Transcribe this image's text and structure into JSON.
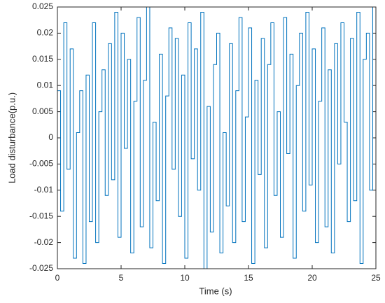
{
  "chart_data": {
    "type": "stairs",
    "xlabel": "Time (s)",
    "ylabel": "Load disturbance(p.u.)",
    "xlim": [
      0,
      25
    ],
    "ylim": [
      -0.025,
      0.025
    ],
    "xticks": [
      0,
      5,
      10,
      15,
      20,
      25
    ],
    "yticks": [
      -0.025,
      -0.02,
      -0.015,
      -0.01,
      -0.005,
      0,
      0.005,
      0.01,
      0.015,
      0.02,
      0.025
    ],
    "grid": false,
    "series": [
      {
        "color": "#0072bd",
        "x": [
          0,
          0.25,
          0.5,
          0.75,
          1,
          1.25,
          1.5,
          1.75,
          2,
          2.25,
          2.5,
          2.75,
          3,
          3.25,
          3.5,
          3.75,
          4,
          4.25,
          4.5,
          4.75,
          5,
          5.25,
          5.5,
          5.75,
          6,
          6.25,
          6.5,
          6.75,
          7,
          7.25,
          7.5,
          7.75,
          8,
          8.25,
          8.5,
          8.75,
          9,
          9.25,
          9.5,
          9.75,
          10,
          10.25,
          10.5,
          10.75,
          11,
          11.25,
          11.5,
          11.75,
          12,
          12.25,
          12.5,
          12.75,
          13,
          13.25,
          13.5,
          13.75,
          14,
          14.25,
          14.5,
          14.75,
          15,
          15.25,
          15.5,
          15.75,
          16,
          16.25,
          16.5,
          16.75,
          17,
          17.25,
          17.5,
          17.75,
          18,
          18.25,
          18.5,
          18.75,
          19,
          19.25,
          19.5,
          19.75,
          20,
          20.25,
          20.5,
          20.75,
          21,
          21.25,
          21.5,
          21.75,
          22,
          22.25,
          22.5,
          22.75,
          23,
          23.25,
          23.5,
          23.75,
          24,
          24.25,
          24.5,
          24.75,
          25
        ],
        "values": [
          0.009,
          -0.014,
          0.022,
          -0.006,
          0.017,
          -0.023,
          0.001,
          0.009,
          -0.024,
          0.012,
          -0.016,
          0.022,
          -0.02,
          0.005,
          0.013,
          -0.011,
          0.018,
          -0.008,
          0.024,
          -0.019,
          0.02,
          -0.002,
          0.015,
          -0.022,
          0.007,
          0.023,
          -0.017,
          0.011,
          0.025,
          -0.021,
          0.003,
          -0.012,
          0.016,
          -0.024,
          0.008,
          0.021,
          -0.006,
          0.019,
          -0.015,
          0.012,
          -0.023,
          0.022,
          -0.004,
          0.017,
          -0.01,
          0.024,
          -0.025,
          0.006,
          -0.018,
          0.014,
          0.02,
          -0.022,
          0.001,
          -0.013,
          0.018,
          -0.02,
          0.009,
          0.023,
          -0.016,
          0.004,
          0.021,
          -0.024,
          0.011,
          -0.007,
          0.019,
          -0.021,
          0.014,
          0.022,
          -0.011,
          0.005,
          -0.019,
          0.023,
          -0.003,
          0.016,
          -0.023,
          0.01,
          0.02,
          -0.014,
          0.024,
          -0.009,
          0.017,
          -0.02,
          0.007,
          0.021,
          -0.017,
          0.013,
          -0.022,
          0.018,
          -0.005,
          0.022,
          0.003,
          -0.016,
          0.019,
          -0.012,
          0.024,
          -0.024,
          0.015,
          0.02,
          -0.01,
          0.025,
          -0.025
        ]
      }
    ]
  }
}
